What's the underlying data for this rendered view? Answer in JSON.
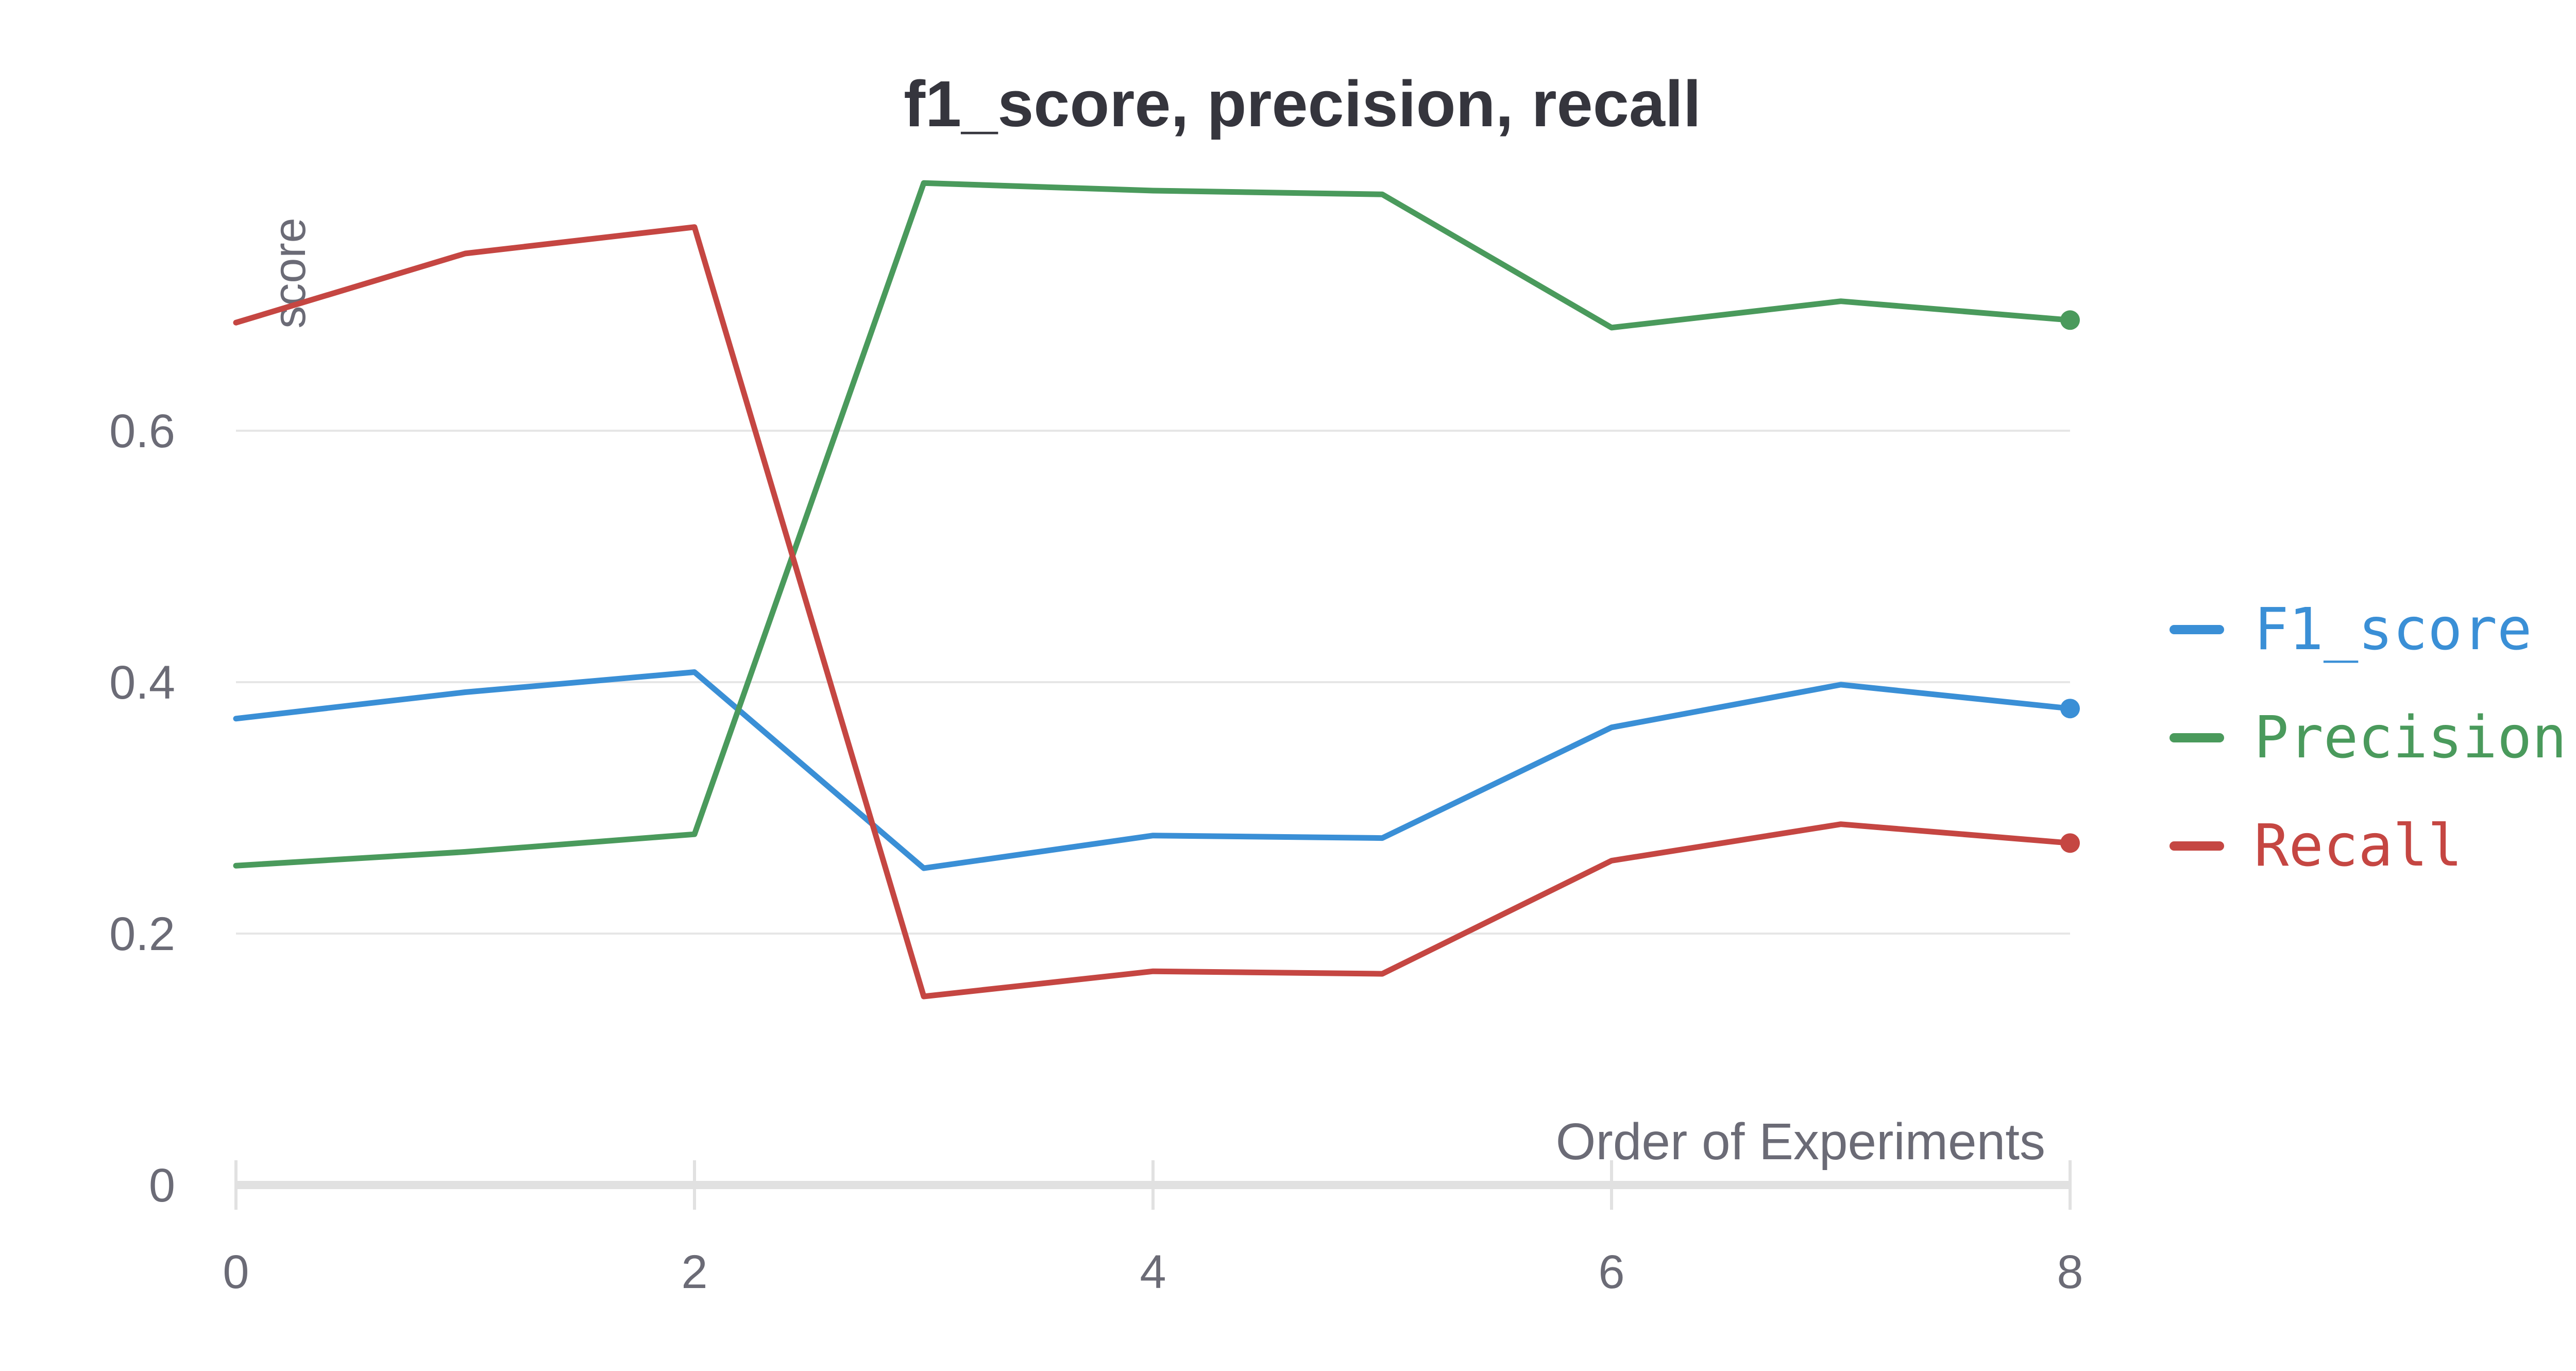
{
  "chart_data": {
    "type": "line",
    "title": "f1_score, precision, recall",
    "xlabel": "Order of Experiments",
    "ylabel": "score",
    "x": [
      0,
      1,
      2,
      3,
      4,
      5,
      6,
      7,
      8
    ],
    "xlim": [
      0,
      8
    ],
    "ylim": [
      0,
      0.8
    ],
    "x_ticks": [
      "0",
      "2",
      "4",
      "6",
      "8"
    ],
    "y_ticks": [
      "0",
      "0.2",
      "0.4",
      "0.6"
    ],
    "grid": true,
    "legend_placement": "right",
    "series": [
      {
        "name": "F1_score",
        "color": "#3a8fd6",
        "values": [
          0.371,
          0.392,
          0.408,
          0.252,
          0.278,
          0.276,
          0.364,
          0.398,
          0.379
        ]
      },
      {
        "name": "Precision",
        "color": "#4a9a5c",
        "values": [
          0.254,
          0.265,
          0.279,
          0.797,
          0.791,
          0.788,
          0.682,
          0.703,
          0.688
        ]
      },
      {
        "name": "Recall",
        "color": "#c54642",
        "values": [
          0.686,
          0.741,
          0.762,
          0.15,
          0.17,
          0.168,
          0.258,
          0.287,
          0.272
        ]
      }
    ]
  }
}
